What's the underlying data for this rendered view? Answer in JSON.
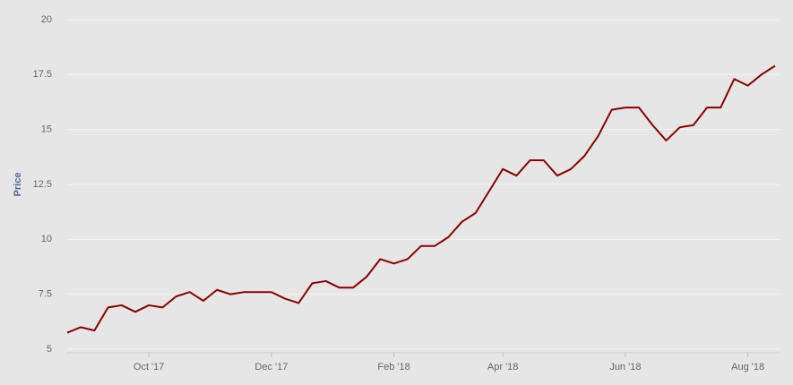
{
  "chart_data": {
    "type": "line",
    "y_label": "Price",
    "categories": [
      null,
      null,
      null,
      null,
      null,
      null,
      "Oct '17",
      null,
      null,
      null,
      null,
      null,
      null,
      null,
      null,
      "Dec '17",
      null,
      null,
      null,
      null,
      null,
      null,
      null,
      null,
      "Feb '18",
      null,
      null,
      null,
      null,
      null,
      null,
      null,
      "Apr '18",
      null,
      null,
      null,
      null,
      null,
      null,
      null,
      null,
      "Jun '18",
      null,
      null,
      null,
      null,
      null,
      null,
      null,
      null,
      "Aug '18",
      null,
      null
    ],
    "series": [
      {
        "name": "Price",
        "color": "#8b0000",
        "values": [
          5.75,
          6.0,
          5.85,
          6.9,
          7.0,
          6.7,
          7.0,
          6.9,
          7.4,
          7.6,
          7.2,
          7.7,
          7.5,
          7.6,
          7.6,
          7.6,
          7.3,
          7.1,
          8.0,
          8.1,
          7.8,
          7.8,
          8.3,
          9.1,
          8.9,
          9.1,
          9.7,
          9.7,
          10.1,
          10.8,
          11.2,
          12.2,
          13.2,
          12.9,
          13.6,
          13.6,
          12.9,
          13.2,
          13.8,
          14.7,
          15.9,
          16.0,
          16.0,
          15.2,
          14.5,
          15.1,
          15.2,
          16.0,
          16.0,
          17.3,
          17.0,
          17.5,
          17.9
        ]
      }
    ],
    "ylim": [
      5,
      20
    ],
    "yticks": [
      5,
      7.5,
      10,
      12.5,
      15,
      17.5,
      20
    ],
    "grid": true
  }
}
